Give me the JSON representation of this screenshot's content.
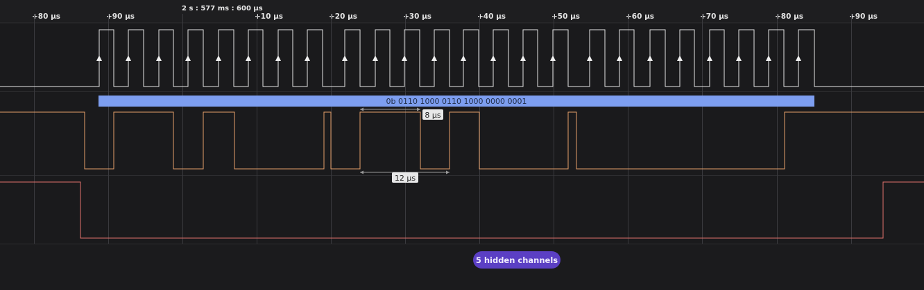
{
  "cursor_time": "2 s : 577 ms : 600 μs",
  "ruler_ticks": [
    "+80 μs",
    "+90 μs",
    "+10 μs",
    "+20 μs",
    "+30 μs",
    "+40 μs",
    "+50 μs",
    "+60 μs",
    "+70 μs",
    "+80 μs",
    "+90 μs"
  ],
  "decoder": {
    "value": "0b 0110 1000 0110 1000 0000 0001"
  },
  "measurements": {
    "upper": "8 μs",
    "lower": "12 μs"
  },
  "hidden_channels_label": "5 hidden channels",
  "colors": {
    "background": "#1b1b1d",
    "clock_channel": "#e6e6e6",
    "data_channel": "#e6a06a",
    "enable_channel": "#e2726c",
    "decoder_bar": "#7d9ef0",
    "hidden_button": "#5b3fc4"
  },
  "channels": [
    {
      "id": "channel-0",
      "kind": "clock",
      "edges": 24
    },
    {
      "id": "channel-1",
      "kind": "data"
    },
    {
      "id": "channel-2",
      "kind": "enable"
    }
  ]
}
